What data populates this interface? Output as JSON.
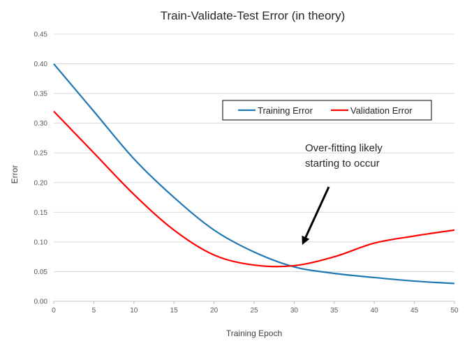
{
  "chart_data": {
    "type": "line",
    "title": "Train-Validate-Test  Error  (in theory)",
    "xlabel": "Training Epoch",
    "ylabel": "Error",
    "xlim": [
      0,
      50
    ],
    "ylim": [
      0,
      0.45
    ],
    "x_ticks": [
      "0",
      "5",
      "10",
      "15",
      "20",
      "25",
      "30",
      "35",
      "40",
      "45",
      "50"
    ],
    "y_ticks": [
      "0.00",
      "0.05",
      "0.10",
      "0.15",
      "0.20",
      "0.25",
      "0.30",
      "0.35",
      "0.40",
      "0.45"
    ],
    "grid": "horizontal",
    "legend_position": "top-right",
    "x": [
      0,
      5,
      10,
      15,
      20,
      25,
      30,
      35,
      40,
      45,
      50
    ],
    "series": [
      {
        "name": "Training Error",
        "color": "#1F77B4",
        "values": [
          0.4,
          0.32,
          0.24,
          0.175,
          0.12,
          0.083,
          0.058,
          0.047,
          0.04,
          0.034,
          0.03
        ]
      },
      {
        "name": "Validation Error",
        "color": "#FF0000",
        "values": [
          0.32,
          0.25,
          0.18,
          0.12,
          0.078,
          0.061,
          0.06,
          0.075,
          0.098,
          0.11,
          0.12
        ]
      }
    ],
    "annotation": {
      "lines": [
        "Over-fitting likely",
        "starting to occur"
      ],
      "arrow_target": {
        "x": 31,
        "y": 0.095
      }
    }
  }
}
